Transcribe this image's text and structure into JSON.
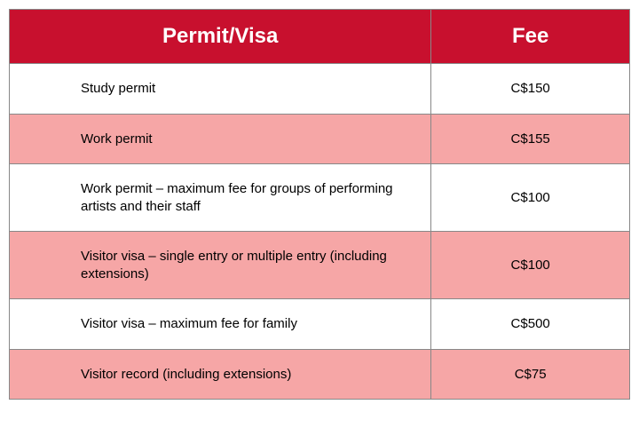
{
  "table": {
    "header": {
      "permit_label": "Permit/Visa",
      "fee_label": "Fee",
      "background_color": "#c8102e",
      "text_color": "#ffffff",
      "font_size": 24,
      "font_weight": "bold"
    },
    "columns": [
      {
        "key": "permit",
        "width_pct": 68,
        "align": "left"
      },
      {
        "key": "fee",
        "width_pct": 32,
        "align": "center"
      }
    ],
    "row_colors": {
      "even": "#ffffff",
      "odd": "#f6a6a6"
    },
    "border_color": "#888888",
    "body_font_size": 15,
    "rows": [
      {
        "permit": "Study permit",
        "fee": "C$150"
      },
      {
        "permit": "Work permit",
        "fee": "C$155"
      },
      {
        "permit": "Work permit – maximum fee for groups of performing artists and their staff",
        "fee": "C$100"
      },
      {
        "permit": "Visitor visa – single entry or multiple entry (including extensions)",
        "fee": "C$100"
      },
      {
        "permit": "Visitor visa – maximum fee for family",
        "fee": "C$500"
      },
      {
        "permit": "Visitor record (including extensions)",
        "fee": "C$75"
      }
    ]
  }
}
